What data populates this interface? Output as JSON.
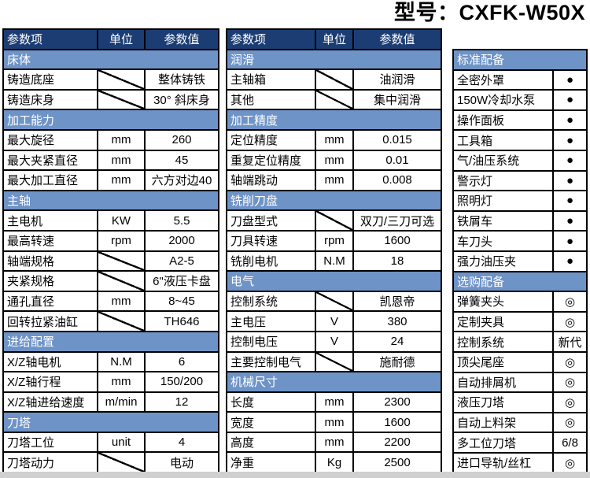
{
  "title": {
    "text": "型号：CXFK-W50X"
  },
  "colors": {
    "header_bg": "#1C3D74",
    "section_bg": "#6E93C7",
    "border": "#000000",
    "bottom_strip": "#D0D0D0"
  },
  "marks": {
    "standard": "●",
    "optional": "◎"
  },
  "left_table": {
    "headers": [
      "参数项",
      "单位",
      "参数值"
    ],
    "rows": [
      {
        "section": "床体"
      },
      {
        "item": "铸造底座",
        "unit": null,
        "value": "整体铸铁"
      },
      {
        "item": "铸造床身",
        "unit": null,
        "value": "30° 斜床身"
      },
      {
        "section": "加工能力"
      },
      {
        "item": "最大旋径",
        "unit": "mm",
        "value": "260"
      },
      {
        "item": "最大夹紧直径",
        "unit": "mm",
        "value": "45"
      },
      {
        "item": "最大加工直径",
        "unit": "mm",
        "value": "六方对边40"
      },
      {
        "section": "主轴"
      },
      {
        "item": "主电机",
        "unit": "KW",
        "value": "5.5"
      },
      {
        "item": "最高转速",
        "unit": "rpm",
        "value": "2000"
      },
      {
        "item": "轴端规格",
        "unit": null,
        "value": "A2-5"
      },
      {
        "item": "夹紧规格",
        "unit": null,
        "value": "6\"液压卡盘"
      },
      {
        "item": "通孔直径",
        "unit": "mm",
        "value": "8~45"
      },
      {
        "item": "回转拉紧油缸",
        "unit": null,
        "value": "TH646"
      },
      {
        "section": "进给配置"
      },
      {
        "item": "X/Z轴电机",
        "unit": "N.M",
        "value": "6"
      },
      {
        "item": "X/Z轴行程",
        "unit": "mm",
        "value": "150/200"
      },
      {
        "item": "X/Z轴进给速度",
        "unit": "m/min",
        "value": "12"
      },
      {
        "section": "刀塔"
      },
      {
        "item": "刀塔工位",
        "unit": "unit",
        "value": "4"
      },
      {
        "item": "刀塔动力",
        "unit": null,
        "value": "电动"
      }
    ]
  },
  "middle_table": {
    "headers": [
      "参数项",
      "单位",
      "参数值"
    ],
    "rows": [
      {
        "section": "润滑"
      },
      {
        "item": "主轴箱",
        "unit": null,
        "value": "油润滑"
      },
      {
        "item": "其他",
        "unit": null,
        "value": "集中润滑"
      },
      {
        "section": "加工精度"
      },
      {
        "item": "定位精度",
        "unit": "mm",
        "value": "0.015"
      },
      {
        "item": "重复定位精度",
        "unit": "mm",
        "value": "0.01"
      },
      {
        "item": "轴端跳动",
        "unit": "mm",
        "value": "0.008"
      },
      {
        "section": "铣削刀盘"
      },
      {
        "item": "刀盘型式",
        "unit": null,
        "value": "双刀/三刀可选"
      },
      {
        "item": "刀具转速",
        "unit": "rpm",
        "value": "1600"
      },
      {
        "item": "铣削电机",
        "unit": "N.M",
        "value": "18"
      },
      {
        "section": "电气"
      },
      {
        "item": "控制系统",
        "unit": null,
        "value": "凯恩帝"
      },
      {
        "item": "主电压",
        "unit": "V",
        "value": "380"
      },
      {
        "item": "控制电压",
        "unit": "V",
        "value": "24"
      },
      {
        "item": "主要控制电气",
        "unit": null,
        "value": "施耐德"
      },
      {
        "section": "机械尺寸"
      },
      {
        "item": "长度",
        "unit": "mm",
        "value": "2300"
      },
      {
        "item": "宽度",
        "unit": "mm",
        "value": "1600"
      },
      {
        "item": "高度",
        "unit": "mm",
        "value": "2200"
      },
      {
        "item": "净重",
        "unit": "Kg",
        "value": "2500"
      }
    ]
  },
  "right_table": {
    "rows": [
      {
        "section": "标准配备"
      },
      {
        "item": "全密外罩",
        "value": "●"
      },
      {
        "item": "150W冷却水泵",
        "value": "●"
      },
      {
        "item": "操作面板",
        "value": "●"
      },
      {
        "item": "工具箱",
        "value": "●"
      },
      {
        "item": "气/油压系统",
        "value": "●"
      },
      {
        "item": "警示灯",
        "value": "●"
      },
      {
        "item": "照明灯",
        "value": "●"
      },
      {
        "item": "铁屑车",
        "value": "●"
      },
      {
        "item": "车刀头",
        "value": "●"
      },
      {
        "item": "强力油压夹",
        "value": "●"
      },
      {
        "section": "选购配备"
      },
      {
        "item": "弹簧夹头",
        "value": "◎"
      },
      {
        "item": "定制夹具",
        "value": "◎"
      },
      {
        "item": "控制系统",
        "value": "新代"
      },
      {
        "item": "顶尖尾座",
        "value": "◎"
      },
      {
        "item": "自动排屑机",
        "value": "◎"
      },
      {
        "item": "液压刀塔",
        "value": "◎"
      },
      {
        "item": "自动上料架",
        "value": "◎"
      },
      {
        "item": "多工位刀塔",
        "value": "6/8"
      },
      {
        "item": "进口导轨/丝杠",
        "value": "◎"
      }
    ]
  }
}
